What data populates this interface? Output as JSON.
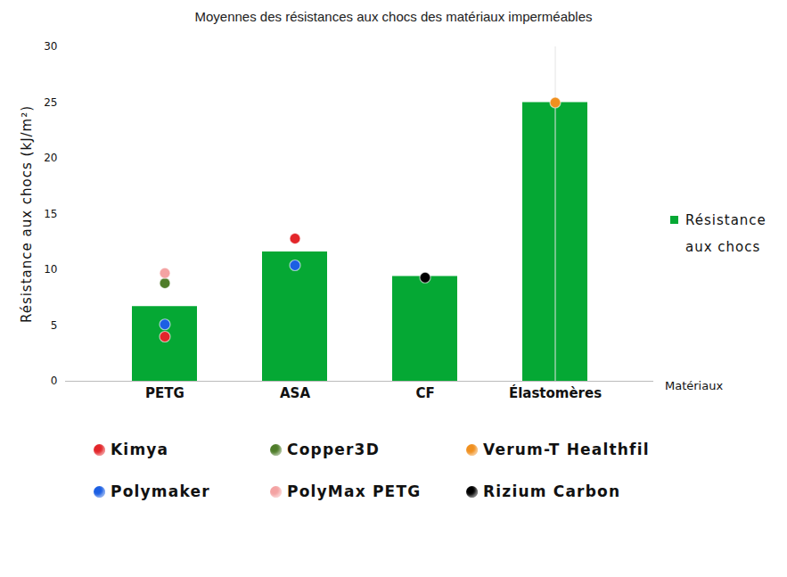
{
  "chart_data": {
    "type": "bar",
    "title": "Moyennes des résistances aux chocs des matériaux imperméables",
    "x_label": "Matériaux",
    "y_label": "Résistance aux chocs (kJ/m²)",
    "categories": [
      "PETG",
      "ASA",
      "CF",
      "Élastomères"
    ],
    "series": [
      {
        "name": "Résistance aux chocs",
        "type": "bar",
        "color": "#05a834",
        "values": [
          6.7,
          11.6,
          9.4,
          25.0
        ]
      },
      {
        "name": "Kimya",
        "type": "scatter",
        "marker": "circle",
        "color": "#e3262a",
        "values": [
          4.0,
          12.8,
          null,
          null
        ]
      },
      {
        "name": "Copper3D",
        "type": "scatter",
        "marker": "circle",
        "color": "#4f7d2a",
        "values": [
          8.8,
          null,
          null,
          null
        ]
      },
      {
        "name": "Verum-T Healthfil",
        "type": "scatter",
        "marker": "circle",
        "color": "#f0901f",
        "values": [
          null,
          null,
          null,
          25.0
        ]
      },
      {
        "name": "Polymaker",
        "type": "scatter",
        "marker": "circle",
        "color": "#1c5fe3",
        "values": [
          5.1,
          10.4,
          null,
          null
        ]
      },
      {
        "name": "PolyMax PETG",
        "type": "scatter",
        "marker": "circle",
        "color": "#f4a3a3",
        "values": [
          9.7,
          null,
          null,
          null
        ]
      },
      {
        "name": "Rizium Carbon",
        "type": "scatter",
        "marker": "circle",
        "color": "#000000",
        "values": [
          null,
          null,
          9.3,
          null
        ]
      }
    ],
    "ylim": [
      0,
      30
    ],
    "yticks": [
      0,
      5,
      10,
      15,
      20,
      25,
      30
    ],
    "grid": false,
    "legend": "right"
  }
}
